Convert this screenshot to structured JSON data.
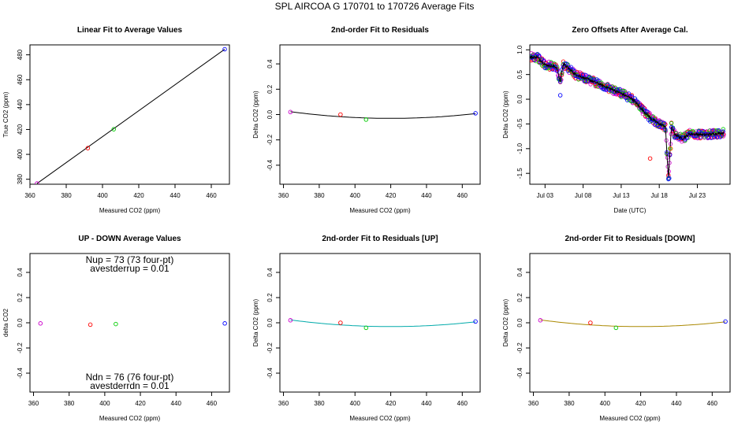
{
  "main_title": "SPL   AIRCOA G   170701 to 170726   Average Fits",
  "chart_data": [
    {
      "type": "scatter",
      "title": "Linear Fit to Average Values",
      "xlabel": "Measured CO2 (ppm)",
      "ylabel": "True CO2 (ppm)",
      "xlim": [
        360,
        470
      ],
      "ylim": [
        376,
        488
      ],
      "xticks": [
        360,
        380,
        400,
        420,
        440,
        460
      ],
      "yticks": [
        380,
        400,
        420,
        440,
        460,
        480
      ],
      "points": [
        {
          "x": 363.9,
          "y": 376.6,
          "color": "#cc00cc"
        },
        {
          "x": 391.9,
          "y": 405.0,
          "color": "#ff0000"
        },
        {
          "x": 406.2,
          "y": 420.2,
          "color": "#00cc00"
        },
        {
          "x": 467.4,
          "y": 484.5,
          "color": "#0000ff"
        }
      ],
      "line": {
        "x1": 363.9,
        "y1": 376.6,
        "x2": 467.4,
        "y2": 484.5,
        "color": "#000000"
      }
    },
    {
      "type": "scatter",
      "title": "2nd-order Fit to Residuals",
      "xlabel": "Measured CO2 (ppm)",
      "ylabel": "Delta CO2 (ppm)",
      "xlim": [
        358,
        470
      ],
      "ylim": [
        -0.55,
        0.55
      ],
      "xticks": [
        360,
        380,
        400,
        420,
        440,
        460
      ],
      "yticks": [
        -0.4,
        -0.2,
        0.0,
        0.2,
        0.4
      ],
      "ytick_labels": [
        "-0.4",
        "-0.2",
        "0.0",
        "0.2",
        "0.4"
      ],
      "points": [
        {
          "x": 363.9,
          "y": 0.02,
          "color": "#cc00cc"
        },
        {
          "x": 391.9,
          "y": 0.0,
          "color": "#ff0000"
        },
        {
          "x": 406.2,
          "y": -0.04,
          "color": "#00cc00"
        },
        {
          "x": 467.4,
          "y": 0.01,
          "color": "#0000ff"
        }
      ],
      "curve": {
        "vertex_x": 420,
        "vertex_y": -0.03,
        "a": 1.67e-05,
        "x_from": 363.9,
        "x_to": 467.4,
        "color": "#000000"
      }
    },
    {
      "type": "line",
      "title": "Zero Offsets After Average Cal.",
      "xlabel": "Date (UTC)",
      "ylabel": "Delta CO2 (ppm)",
      "xlim": [
        0,
        26.3
      ],
      "ylim": [
        -1.72,
        1.1
      ],
      "xtick_positions": [
        2,
        7,
        12,
        17,
        22
      ],
      "xtick_labels": [
        "Jul 03",
        "Jul 08",
        "Jul 13",
        "Jul 18",
        "Jul 23"
      ],
      "yticks": [
        -1.5,
        -1.0,
        -0.5,
        0.0,
        0.5,
        1.0
      ],
      "ytick_labels": [
        "-1.5",
        "-1.0",
        "-0.5",
        "0.0",
        "0.5",
        "1.0"
      ],
      "trend": [
        {
          "x": 0.0,
          "y": 0.85
        },
        {
          "x": 1.0,
          "y": 0.85
        },
        {
          "x": 2.0,
          "y": 0.7
        },
        {
          "x": 3.5,
          "y": 0.65
        },
        {
          "x": 4.0,
          "y": 0.35
        },
        {
          "x": 4.4,
          "y": 0.72
        },
        {
          "x": 6.0,
          "y": 0.5
        },
        {
          "x": 8.0,
          "y": 0.38
        },
        {
          "x": 10.0,
          "y": 0.25
        },
        {
          "x": 12.0,
          "y": 0.12
        },
        {
          "x": 13.5,
          "y": 0.0
        },
        {
          "x": 15.0,
          "y": -0.25
        },
        {
          "x": 16.0,
          "y": -0.4
        },
        {
          "x": 17.0,
          "y": -0.5
        },
        {
          "x": 17.8,
          "y": -0.55
        },
        {
          "x": 18.2,
          "y": -1.6
        },
        {
          "x": 18.6,
          "y": -0.55
        },
        {
          "x": 19.0,
          "y": -0.7
        },
        {
          "x": 20.0,
          "y": -0.8
        },
        {
          "x": 21.0,
          "y": -0.7
        },
        {
          "x": 23.0,
          "y": -0.72
        },
        {
          "x": 25.5,
          "y": -0.68
        }
      ],
      "outliers": [
        {
          "x": 4.0,
          "y": 0.08,
          "color": "#0000ff"
        },
        {
          "x": 15.8,
          "y": -1.2,
          "color": "#ff0000"
        },
        {
          "x": 18.3,
          "y": -1.6,
          "color": "#0000ff"
        },
        {
          "x": 18.5,
          "y": -1.0,
          "color": "#ff6600"
        }
      ],
      "series_colors": [
        "#cc00cc",
        "#ff0000",
        "#00cc00",
        "#0000ff"
      ]
    },
    {
      "type": "scatter",
      "title": "UP - DOWN Average Values",
      "xlabel": "Measured CO2 (ppm)",
      "ylabel": "delta CO2",
      "xlim": [
        358,
        470
      ],
      "ylim": [
        -0.55,
        0.55
      ],
      "xticks": [
        360,
        380,
        400,
        420,
        440,
        460
      ],
      "yticks": [
        -0.4,
        -0.2,
        0.0,
        0.2,
        0.4
      ],
      "ytick_labels": [
        "-0.4",
        "-0.2",
        "0.0",
        "0.2",
        "0.4"
      ],
      "points": [
        {
          "x": 363.9,
          "y": -0.005,
          "color": "#cc00cc"
        },
        {
          "x": 391.9,
          "y": -0.015,
          "color": "#ff0000"
        },
        {
          "x": 406.2,
          "y": -0.01,
          "color": "#00cc00"
        },
        {
          "x": 467.4,
          "y": -0.005,
          "color": "#0000ff"
        }
      ],
      "annotations": {
        "nup": "Nup = 73 (73 four-pt)",
        "avestderrup": "avestderrup =  0.01",
        "ndn": "Ndn = 76 (76 four-pt)",
        "avestderrdn": "avestderrdn =  0.01"
      }
    },
    {
      "type": "scatter",
      "title": "2nd-order Fit to Residuals [UP]",
      "xlabel": "Measured CO2 (ppm)",
      "ylabel": "Delta CO2 (ppm)",
      "xlim": [
        358,
        470
      ],
      "ylim": [
        -0.55,
        0.55
      ],
      "xticks": [
        360,
        380,
        400,
        420,
        440,
        460
      ],
      "yticks": [
        -0.4,
        -0.2,
        0.0,
        0.2,
        0.4
      ],
      "ytick_labels": [
        "-0.4",
        "-0.2",
        "0.0",
        "0.2",
        "0.4"
      ],
      "points": [
        {
          "x": 363.9,
          "y": 0.02,
          "color": "#cc00cc"
        },
        {
          "x": 391.9,
          "y": 0.0,
          "color": "#ff0000"
        },
        {
          "x": 406.2,
          "y": -0.04,
          "color": "#00cc00"
        },
        {
          "x": 467.4,
          "y": 0.01,
          "color": "#0000ff"
        }
      ],
      "curve": {
        "vertex_x": 420,
        "vertex_y": -0.03,
        "a": 1.67e-05,
        "x_from": 363.9,
        "x_to": 467.4,
        "color": "#00aaaa"
      }
    },
    {
      "type": "scatter",
      "title": "2nd-order Fit to Residuals [DOWN]",
      "xlabel": "Measured CO2 (ppm)",
      "ylabel": "Delta CO2 (ppm)",
      "xlim": [
        358,
        470
      ],
      "ylim": [
        -0.55,
        0.55
      ],
      "xticks": [
        360,
        380,
        400,
        420,
        440,
        460
      ],
      "yticks": [
        -0.4,
        -0.2,
        0.0,
        0.2,
        0.4
      ],
      "ytick_labels": [
        "-0.4",
        "-0.2",
        "0.0",
        "0.2",
        "0.4"
      ],
      "points": [
        {
          "x": 363.9,
          "y": 0.02,
          "color": "#cc00cc"
        },
        {
          "x": 391.9,
          "y": 0.0,
          "color": "#ff0000"
        },
        {
          "x": 406.2,
          "y": -0.04,
          "color": "#00cc00"
        },
        {
          "x": 467.4,
          "y": 0.01,
          "color": "#0000ff"
        }
      ],
      "curve": {
        "vertex_x": 420,
        "vertex_y": -0.03,
        "a": 1.67e-05,
        "x_from": 363.9,
        "x_to": 467.4,
        "color": "#aa8800"
      }
    }
  ]
}
